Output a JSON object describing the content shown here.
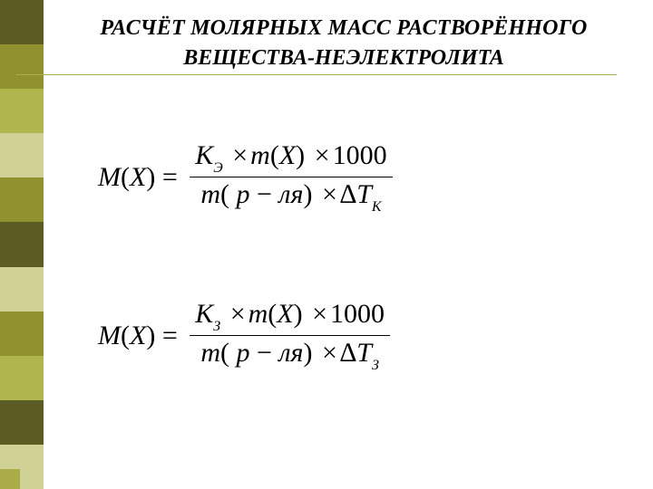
{
  "sidebar": {
    "colors": [
      "#5a5c23",
      "#90922f",
      "#b1b54d",
      "#cfd195",
      "#90922f",
      "#5a5c23",
      "#cfd195",
      "#90922f",
      "#b1b54d",
      "#5a5c23",
      "#cfd195"
    ],
    "corner_color": "#a9ac47"
  },
  "title": {
    "line1": "РАСЧЁТ МОЛЯРНЫХ МАСС РАСТВОРЁННОГО",
    "line2": "ВЕЩЕСТВА-НЕЭЛЕКТРОЛИТА",
    "rule_color": "#aeb050"
  },
  "formula1": {
    "lhs": "M(X) =",
    "num_K": "K",
    "num_K_sub": "Э",
    "num_rest": "× m(X) × 1000",
    "den_m": "m( p − ля )",
    "den_dT": "× ∆T",
    "den_dT_sub": "К"
  },
  "formula2": {
    "lhs": "M(X) =",
    "num_K": "K",
    "num_K_sub": "З",
    "num_rest": "× m(X) × 1000",
    "den_m": "m( p − ля )",
    "den_dT": "× ∆T",
    "den_dT_sub": "З"
  }
}
